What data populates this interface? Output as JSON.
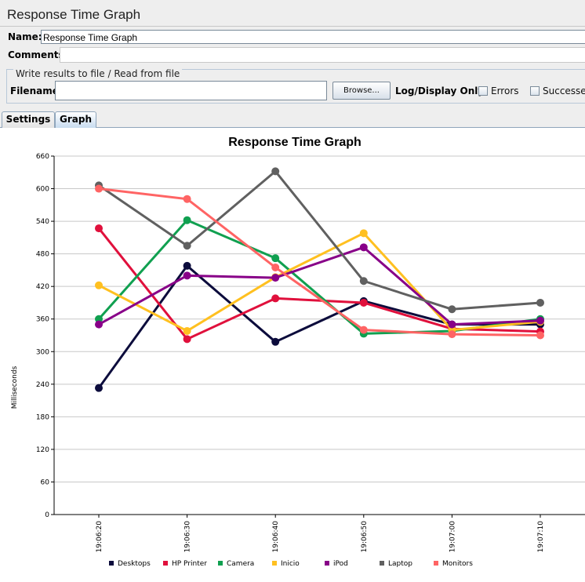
{
  "page_title": "Response Time Graph",
  "name_label": "Name:",
  "name_value": "Response Time Graph",
  "comments_label": "Comments:",
  "comments_value": "",
  "write_results": {
    "legend": "Write results to file / Read from file",
    "filename_label": "Filename",
    "filename_value": "",
    "browse_label": "Browse...",
    "log_display_label": "Log/Display Only:",
    "errors_label": "Errors",
    "successes_label": "Successe"
  },
  "tabs": [
    {
      "label": "Settings",
      "active": false
    },
    {
      "label": "Graph",
      "active": true
    }
  ],
  "chart_data": {
    "type": "line",
    "title": "Response Time Graph",
    "xlabel": "",
    "ylabel": "Milliseconds",
    "ylim": [
      0,
      660
    ],
    "yticks": [
      0,
      60,
      120,
      180,
      240,
      300,
      360,
      420,
      480,
      540,
      600,
      660
    ],
    "categories": [
      "19:06:20",
      "19:06:30",
      "19:06:40",
      "19:06:50",
      "19:07:00",
      "19:07:10"
    ],
    "grid": true,
    "legend_position": "bottom",
    "series": [
      {
        "name": "Desktops",
        "color": "#0c0c3c",
        "values": [
          233,
          458,
          318,
          393,
          350,
          350
        ]
      },
      {
        "name": "HP Printer",
        "color": "#e0103c",
        "values": [
          527,
          323,
          398,
          390,
          342,
          337
        ]
      },
      {
        "name": "Camera",
        "color": "#10a050",
        "values": [
          360,
          542,
          472,
          333,
          338,
          360
        ]
      },
      {
        "name": "Inicio",
        "color": "#ffc020",
        "values": [
          422,
          338,
          437,
          518,
          340,
          355
        ]
      },
      {
        "name": "iPod",
        "color": "#880088",
        "values": [
          350,
          440,
          436,
          492,
          350,
          357
        ]
      },
      {
        "name": "Laptop",
        "color": "#606060",
        "values": [
          606,
          495,
          632,
          430,
          378,
          390
        ]
      },
      {
        "name": "Monitors",
        "color": "#ff6464",
        "values": [
          600,
          581,
          455,
          340,
          332,
          330
        ]
      }
    ]
  }
}
